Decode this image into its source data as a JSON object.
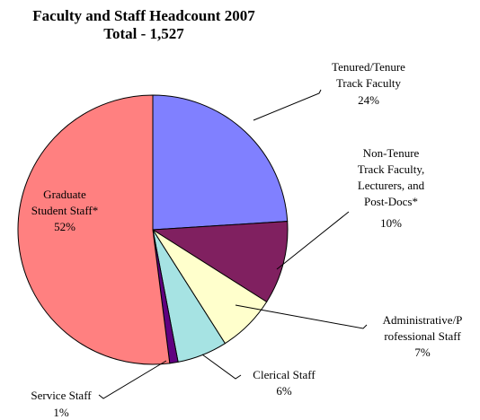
{
  "chart_data": {
    "type": "pie",
    "title": "Faculty and Staff Headcount 2007",
    "subtitle": "Total - 1,527",
    "categories": [
      "Tenured/Tenure\nTrack Faculty",
      "Non-Tenure\nTrack Faculty,\nLecturers, and\nPost-Docs*",
      "Administrative/P\nrofessional Staff",
      "Clerical Staff",
      "Service Staff",
      "Graduate\nStudent Staff*"
    ],
    "values": [
      24,
      10,
      7,
      6,
      1,
      52
    ],
    "value_labels": [
      "24%",
      "10%",
      "7%",
      "6%",
      "1%",
      "52%"
    ],
    "colors": [
      "#8080ff",
      "#802060",
      "#ffffcc",
      "#a6e3e3",
      "#600080",
      "#ff8080"
    ]
  }
}
